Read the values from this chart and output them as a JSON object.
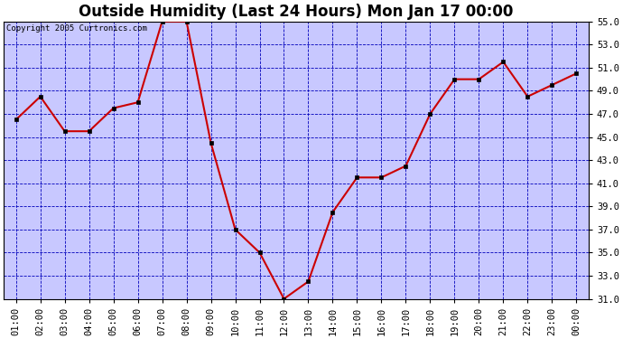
{
  "title": "Outside Humidity (Last 24 Hours) Mon Jan 17 00:00",
  "copyright": "Copyright 2005 Curtronics.com",
  "x_labels": [
    "01:00",
    "02:00",
    "03:00",
    "04:00",
    "05:00",
    "06:00",
    "07:00",
    "08:00",
    "09:00",
    "10:00",
    "11:00",
    "12:00",
    "13:00",
    "14:00",
    "15:00",
    "16:00",
    "17:00",
    "18:00",
    "19:00",
    "20:00",
    "21:00",
    "22:00",
    "23:00",
    "00:00"
  ],
  "y_values": [
    46.5,
    48.5,
    45.5,
    45.5,
    47.5,
    48.0,
    55.0,
    55.0,
    44.5,
    37.0,
    35.0,
    31.0,
    32.5,
    38.5,
    41.5,
    41.5,
    42.5,
    47.0,
    50.0,
    50.0,
    51.5,
    48.5,
    49.5,
    50.5
  ],
  "line_color": "#cc0000",
  "marker_color": "#000000",
  "bg_color": "#ffffff",
  "plot_bg_color": "#c8c8ff",
  "grid_color": "#0000bb",
  "axes_color": "#000000",
  "title_color": "#000000",
  "border_color": "#000000",
  "ylim_min": 31.0,
  "ylim_max": 55.0,
  "ytick_min": 31.0,
  "ytick_max": 55.0,
  "ytick_step": 2.0,
  "title_fontsize": 12,
  "tick_fontsize": 7.5,
  "copyright_fontsize": 6.5
}
